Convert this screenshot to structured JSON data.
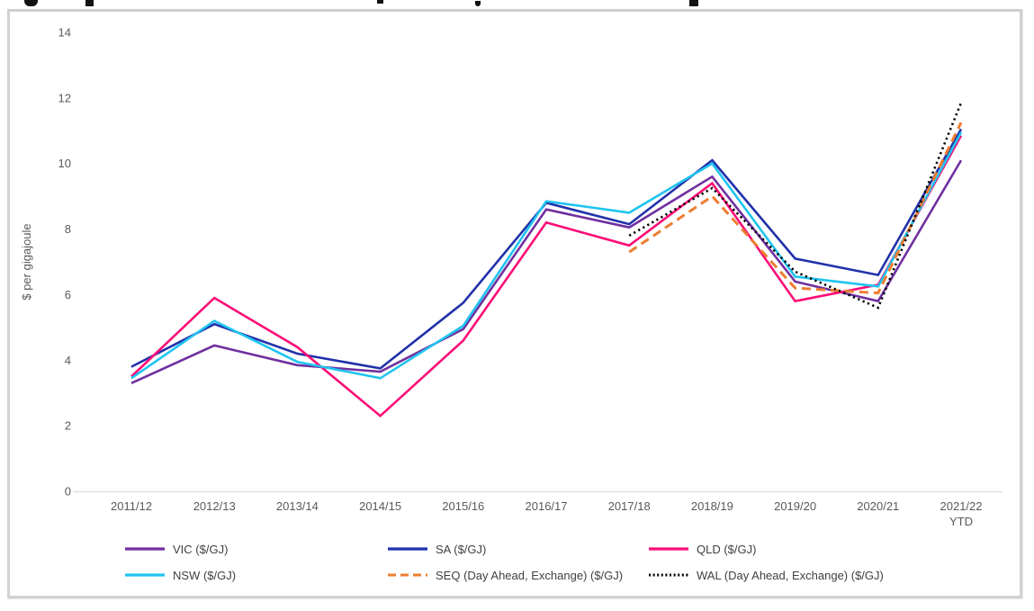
{
  "chart_data": {
    "type": "line",
    "title": "",
    "ylabel": "$ per gigajoule",
    "xlabel": "",
    "ylim": [
      0,
      14
    ],
    "y_ticks": [
      0,
      2,
      4,
      6,
      8,
      10,
      12,
      14
    ],
    "grid": false,
    "legend_position": "bottom",
    "categories": [
      "2011/12",
      "2012/13",
      "2013/14",
      "2014/15",
      "2015/16",
      "2016/17",
      "2017/18",
      "2018/19",
      "2019/20",
      "2020/21",
      "2021/22\nYTD"
    ],
    "series": [
      {
        "name": "VIC ($/GJ)",
        "color": "#7030A0",
        "dash": "solid",
        "values": [
          3.3,
          4.45,
          3.85,
          3.65,
          4.95,
          8.6,
          8.05,
          9.6,
          6.4,
          5.8,
          10.1
        ]
      },
      {
        "name": "SA ($/GJ)",
        "color": "#2131AA",
        "dash": "solid",
        "values": [
          3.8,
          5.1,
          4.2,
          3.75,
          5.75,
          8.8,
          8.15,
          10.1,
          7.1,
          6.6,
          11.05
        ]
      },
      {
        "name": "QLD ($/GJ)",
        "color": "#FB0D77",
        "dash": "solid",
        "values": [
          3.5,
          5.9,
          4.4,
          2.3,
          4.6,
          8.2,
          7.5,
          9.4,
          5.8,
          6.3,
          10.85
        ]
      },
      {
        "name": "NSW ($/GJ)",
        "color": "#1FC4F0",
        "dash": "solid",
        "values": [
          3.45,
          5.2,
          3.95,
          3.45,
          5.05,
          8.85,
          8.5,
          10.0,
          6.55,
          6.25,
          10.95
        ]
      },
      {
        "name": "SEQ (Day Ahead, Exchange) ($/GJ)",
        "color": "#ED7D31",
        "dash": "dashed",
        "values": [
          null,
          null,
          null,
          null,
          null,
          null,
          7.3,
          9.0,
          6.2,
          6.05,
          11.25
        ]
      },
      {
        "name": "WAL (Day Ahead, Exchange) ($/GJ)",
        "color": "#000000",
        "dash": "dotted",
        "values": [
          null,
          null,
          null,
          null,
          null,
          null,
          7.8,
          9.25,
          6.7,
          5.6,
          11.85
        ]
      }
    ],
    "axis_colors": {
      "tick_label": "#595959",
      "axis_line": "#D9D9D9"
    }
  }
}
